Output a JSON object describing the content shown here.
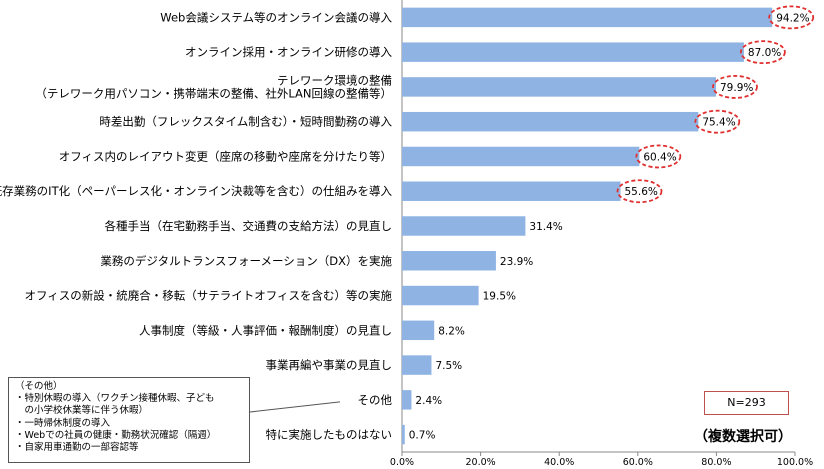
{
  "chart_data": {
    "type": "bar",
    "orientation": "horizontal",
    "title": "",
    "xlabel": "",
    "ylabel": "",
    "xlim": [
      0,
      100
    ],
    "x_ticks": [
      "0.0%",
      "20.0%",
      "40.0%",
      "60.0%",
      "80.0%",
      "100.0%"
    ],
    "grid": false,
    "bar_color": "#8fb4e3",
    "highlight_color": "#e03030",
    "categories": [
      [
        "Web会議システム等のオンライン会議の導入"
      ],
      [
        "オンライン採用・オンライン研修の導入"
      ],
      [
        "テレワーク環境の整備",
        "（テレワーク用パソコン・携帯端末の整備、社外LAN回線の整備等）"
      ],
      [
        "時差出勤（フレックスタイム制含む）・短時間勤務の導入"
      ],
      [
        "オフィス内のレイアウト変更（座席の移動や座席を分けたり等）"
      ],
      [
        "既存業務のIT化（ペーパーレス化・オンライン決裁等を含む）の仕組みを導入"
      ],
      [
        "各種手当（在宅勤務手当、交通費の支給方法）の見直し"
      ],
      [
        "業務のデジタルトランスフォーメーション（DX）を実施"
      ],
      [
        "オフィスの新設・統廃合・移転（サテライトオフィスを含む）等の実施"
      ],
      [
        "人事制度（等級・人事評価・報酬制度）の見直し"
      ],
      [
        "事業再編や事業の見直し"
      ],
      [
        "その他"
      ],
      [
        "特に実施したものはない"
      ]
    ],
    "values": [
      94.2,
      87.0,
      79.9,
      75.4,
      60.4,
      55.6,
      31.4,
      23.9,
      19.5,
      8.2,
      7.5,
      2.4,
      0.7
    ],
    "value_labels": [
      "94.2%",
      "87.0%",
      "79.9%",
      "75.4%",
      "60.4%",
      "55.6%",
      "31.4%",
      "23.9%",
      "19.5%",
      "8.2%",
      "7.5%",
      "2.4%",
      "0.7%"
    ],
    "highlighted": [
      true,
      true,
      true,
      true,
      true,
      true,
      false,
      false,
      false,
      false,
      false,
      false,
      false
    ]
  },
  "note": {
    "lines": [
      "（その他）",
      "・特別休暇の導入（ワクチン接種休暇、子ども",
      "　の小学校休業等に伴う休暇）",
      "・一時帰休制度の導入",
      "・Webでの社員の健康・勤務状況確認（隔週）",
      "・自家用車通勤の一部容認等"
    ]
  },
  "sample_size": "N=293",
  "multi_select": "（複数選択可）"
}
